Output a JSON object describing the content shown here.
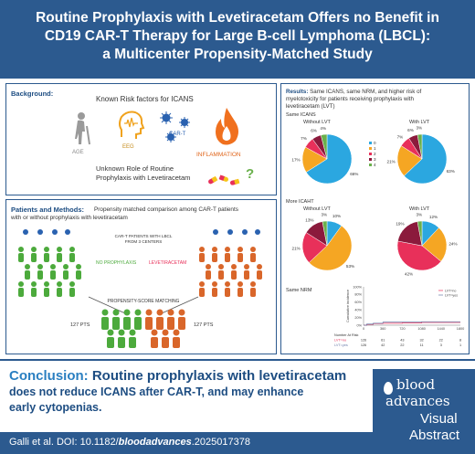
{
  "title": {
    "line1": "Routine Prophylaxis with Levetiracetam Offers no Benefit in",
    "line2": "CD19 CAR-T Therapy for Large B-cell Lymphoma (LBCL):",
    "line3": "a Multicenter Propensity-Matched Study"
  },
  "background": {
    "heading": "Background:",
    "known_risk": "Known Risk factors for ICANS",
    "factors": [
      "AGE",
      "EEG",
      "CAR-T",
      "INFLAMMATION"
    ],
    "unknown_line1": "Unknown Role of Routine",
    "unknown_line2": "Prophylaxis with Levetiracetam",
    "question_mark": "?"
  },
  "methods": {
    "heading": "Patients and Methods:",
    "intro_line1": "Propensity matched comparison among CAR-T patients",
    "intro_line2": "with or without prophylaxis with levetiracetam",
    "center_line1": "CAR-T PATIENTS WITH LBCL",
    "center_line2": "FROM 3 CENTERS",
    "no_prophylaxis": "NO PROPHYLAXIS",
    "levetiracetam": "LEVETIRACETAM",
    "matching": "PROPENSITY-SCORE MATCHING",
    "pts_left": "127 PTS",
    "pts_right": "127 PTS"
  },
  "results": {
    "heading": "Results:",
    "heading_rest_line1": "Same ICANS, same NRM, and higher risk of",
    "heading_rest_line2": "myelotoxicity for patients receiving prophylaxis with",
    "heading_rest_line3": "levetiracetam (LVT)",
    "icans_label": "Same ICANS",
    "icaht_label": "More ICAHT",
    "nrm_label": "Same NRM",
    "without_lvt": "Without LVT",
    "with_lvt": "With LVT",
    "legend": [
      "0",
      "1",
      "2",
      "3",
      "4"
    ],
    "colors": [
      "#2ba7e0",
      "#f5a623",
      "#e8305a",
      "#8b1a3c",
      "#6ab04c"
    ]
  },
  "chart_data": [
    {
      "type": "pie",
      "title": "Without LVT",
      "categories": [
        "0",
        "1",
        "2",
        "3",
        "4"
      ],
      "values": [
        66,
        17,
        7,
        6,
        4
      ],
      "labels": [
        "66%",
        "17%",
        "7%",
        "6%",
        "4%"
      ]
    },
    {
      "type": "pie",
      "title": "With LVT",
      "categories": [
        "0",
        "1",
        "2",
        "3",
        "4"
      ],
      "values": [
        63,
        21,
        7,
        6,
        3
      ],
      "labels": [
        "63%",
        "21%",
        "7%",
        "6%",
        "3%"
      ]
    },
    {
      "type": "pie",
      "title": "Without LVT",
      "categories": [
        "0",
        "1",
        "2",
        "3",
        "4"
      ],
      "values": [
        10,
        53,
        21,
        13,
        3
      ],
      "labels": [
        "10%",
        "53%",
        "21%",
        "13%",
        "3%"
      ]
    },
    {
      "type": "pie",
      "title": "With LVT",
      "categories": [
        "0",
        "1",
        "2",
        "3",
        "4"
      ],
      "values": [
        12,
        24,
        42,
        19,
        3
      ],
      "labels": [
        "12%",
        "24%",
        "42%",
        "19%",
        "3%"
      ]
    },
    {
      "type": "line",
      "ylabel": "Cumulative incidence",
      "x_ticks": [
        "0",
        "360",
        "720",
        "1080",
        "1440",
        "1800"
      ],
      "y_ticks": [
        "0%",
        "20%",
        "40%",
        "60%",
        "80%",
        "100%"
      ],
      "ylim": [
        0,
        100
      ],
      "xlim": [
        0,
        1800
      ],
      "series": [
        {
          "name": "LVT=no",
          "x": [
            0,
            60,
            180,
            360,
            720,
            1080,
            1800
          ],
          "y": [
            0,
            2,
            4,
            5,
            6,
            7,
            7
          ]
        },
        {
          "name": "LVT=yes",
          "x": [
            0,
            60,
            180,
            360,
            720,
            1080,
            1800
          ],
          "y": [
            0,
            3,
            5,
            8,
            8,
            9,
            9
          ]
        }
      ],
      "series_colors": [
        "#e8305a",
        "#6a7ba8"
      ],
      "risk_table": {
        "title": "Number At Risk",
        "rows": [
          {
            "name": "LVT=no",
            "values": [
              "126",
              "61",
              "43",
              "32",
              "22",
              "8"
            ]
          },
          {
            "name": "LVT=yes",
            "values": [
              "126",
              "42",
              "22",
              "11",
              "3",
              "1"
            ]
          }
        ]
      }
    }
  ],
  "conclusion": {
    "label": "Conclusion:",
    "text_line1": "Routine prophylaxis with levetiracetam",
    "text_line2": "does not reduce ICANS after CAR-T, and may enhance",
    "text_line3": "early cytopenias."
  },
  "citation": {
    "prefix": "Galli et al. DOI: 10.1182/",
    "bold": "bloodadvances",
    "suffix": ".2025017378"
  },
  "logo": {
    "line1": "blood",
    "line2": "advances",
    "line3": "Visual",
    "line4": "Abstract"
  }
}
